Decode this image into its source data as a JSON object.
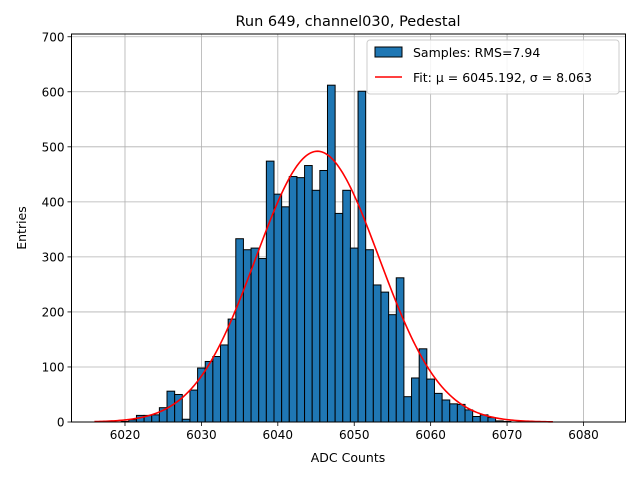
{
  "chart_data": {
    "type": "bar",
    "title": "Run 649, channel030, Pedestal",
    "xlabel": "ADC Counts",
    "ylabel": "Entries",
    "xlim": [
      6013,
      6085.5
    ],
    "ylim": [
      0,
      705
    ],
    "xticks": [
      6020,
      6030,
      6040,
      6050,
      6060,
      6070,
      6080
    ],
    "yticks": [
      0,
      100,
      200,
      300,
      400,
      500,
      600,
      700
    ],
    "grid": true,
    "legend_position": "top-right",
    "bin_width": 1,
    "x": [
      6020,
      6021,
      6022,
      6023,
      6024,
      6025,
      6026,
      6027,
      6028,
      6029,
      6030,
      6031,
      6032,
      6033,
      6034,
      6035,
      6036,
      6037,
      6038,
      6039,
      6040,
      6041,
      6042,
      6043,
      6044,
      6045,
      6046,
      6047,
      6048,
      6049,
      6050,
      6051,
      6052,
      6053,
      6054,
      6055,
      6056,
      6057,
      6058,
      6059,
      6060,
      6061,
      6062,
      6063,
      6064,
      6065,
      6066,
      6067,
      6068,
      6069,
      6070
    ],
    "values": [
      1,
      4,
      12,
      12,
      13,
      26,
      56,
      50,
      5,
      58,
      98,
      110,
      119,
      140,
      187,
      333,
      313,
      316,
      297,
      474,
      414,
      391,
      446,
      444,
      466,
      421,
      457,
      612,
      379,
      421,
      316,
      601,
      313,
      249,
      236,
      195,
      262,
      46,
      80,
      133,
      78,
      52,
      40,
      33,
      32,
      22,
      10,
      13,
      8,
      2,
      1
    ],
    "series": [
      {
        "name": "Samples: RMS=7.94",
        "kind": "histogram",
        "color": "#1f77b4"
      },
      {
        "name": "Fit: μ = 6045.192, σ = 8.063",
        "kind": "gaussian_fit",
        "color": "#ff0000",
        "mu": 6045.192,
        "sigma": 8.063,
        "amplitude": 492,
        "x_range": [
          6016,
          6076
        ]
      }
    ]
  }
}
